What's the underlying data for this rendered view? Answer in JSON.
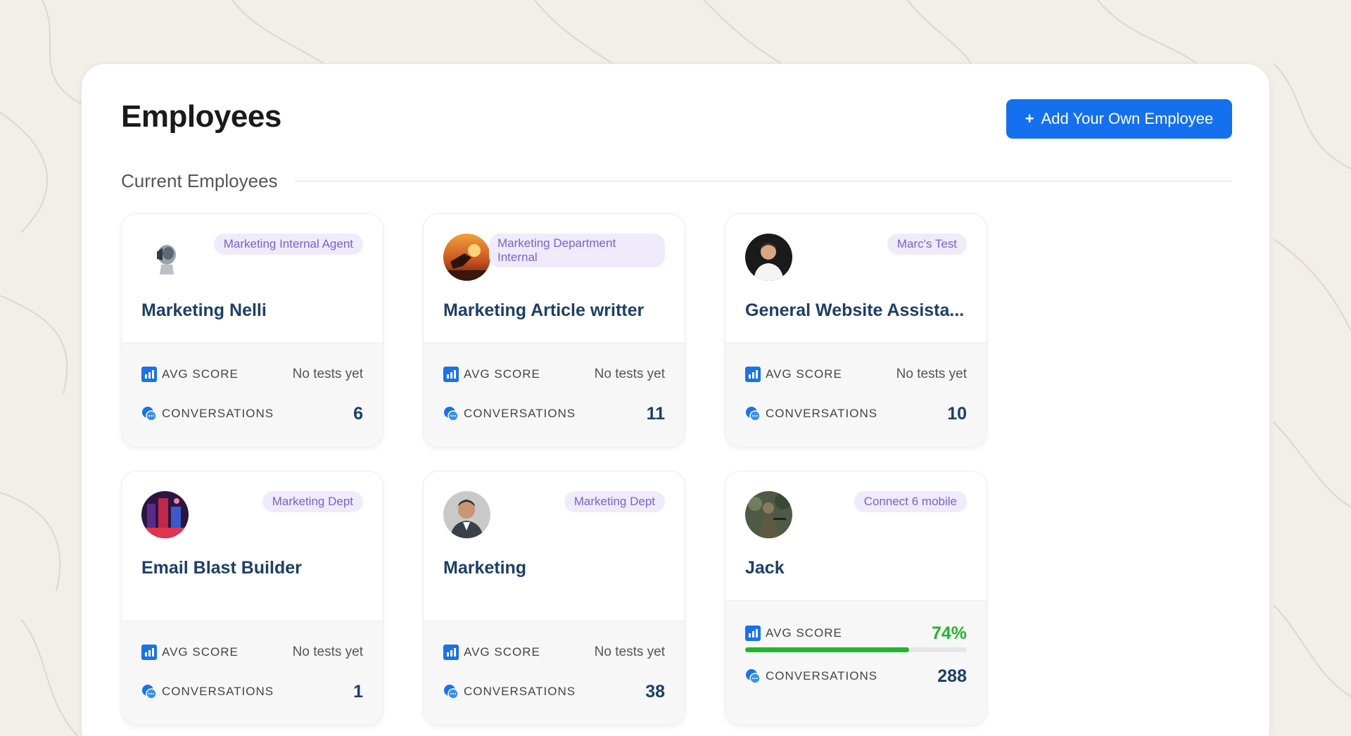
{
  "page": {
    "title": "Employees",
    "add_button_label": "Add Your Own Employee",
    "section_title": "Current Employees"
  },
  "labels": {
    "avg_score": "AVG SCORE",
    "conversations": "CONVERSATIONS"
  },
  "colors": {
    "accent": "#1570ef",
    "tag_bg": "#efebfb",
    "tag_text": "#7a62cf",
    "name_text": "#1c3f66",
    "score_good": "#22b52b"
  },
  "employees": [
    {
      "name": "Marketing Nelli",
      "tag": "Marketing Internal Agent",
      "avatar": "robot-avatar",
      "avg_score": "No tests yet",
      "conversations": "6"
    },
    {
      "name": "Marketing Article writter",
      "tag": "Marketing Department Internal",
      "avatar": "sunset-figure-avatar",
      "avg_score": "No tests yet",
      "conversations": "11"
    },
    {
      "name": "General Website Assista...",
      "tag": "Marc's Test",
      "avatar": "man-portrait-avatar",
      "avg_score": "No tests yet",
      "conversations": "10"
    },
    {
      "name": "Email Blast Builder",
      "tag": "Marketing Dept",
      "avatar": "neon-city-avatar",
      "avg_score": "No tests yet",
      "conversations": "1"
    },
    {
      "name": "Marketing",
      "tag": "Marketing Dept",
      "avatar": "businessman-avatar",
      "avg_score": "No tests yet",
      "conversations": "38"
    },
    {
      "name": "Jack",
      "tag": "Connect 6 mobile",
      "avatar": "soldier-avatar",
      "avg_score": "74%",
      "avg_score_progress": 0.74,
      "conversations": "288"
    }
  ]
}
